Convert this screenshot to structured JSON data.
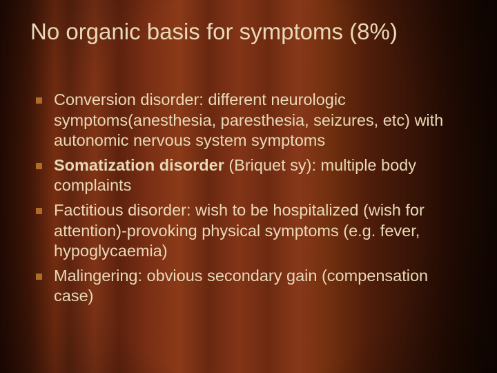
{
  "slide": {
    "title": "No organic basis for symptoms (8%)",
    "title_color": "#e9d9b8",
    "title_fontsize": 33,
    "body_color": "#e9d9b8",
    "body_fontsize": 23.5,
    "bullet_color": "#b06a2a",
    "background_colors": {
      "curtain_dark": "#2a0c04",
      "curtain_mid": "#7d3012",
      "curtain_light": "#8a3a18",
      "vignette": "#000000"
    },
    "bullets": [
      {
        "runs": [
          {
            "text": "Conversion disorder: different neurologic symptoms(anesthesia, paresthesia, seizures, etc) with autonomic nervous system symptoms",
            "bold": false
          }
        ]
      },
      {
        "runs": [
          {
            "text": "Somatization disorder",
            "bold": true
          },
          {
            "text": " (Briquet sy): multiple body complaints",
            "bold": false
          }
        ]
      },
      {
        "runs": [
          {
            "text": "Factitious disorder: wish to be hospitalized (wish for attention)-provoking physical symptoms (e.g. fever, hypoglycaemia)",
            "bold": false
          }
        ]
      },
      {
        "runs": [
          {
            "text": "Malingering: obvious secondary gain (compensation case)",
            "bold": false
          }
        ]
      }
    ]
  }
}
